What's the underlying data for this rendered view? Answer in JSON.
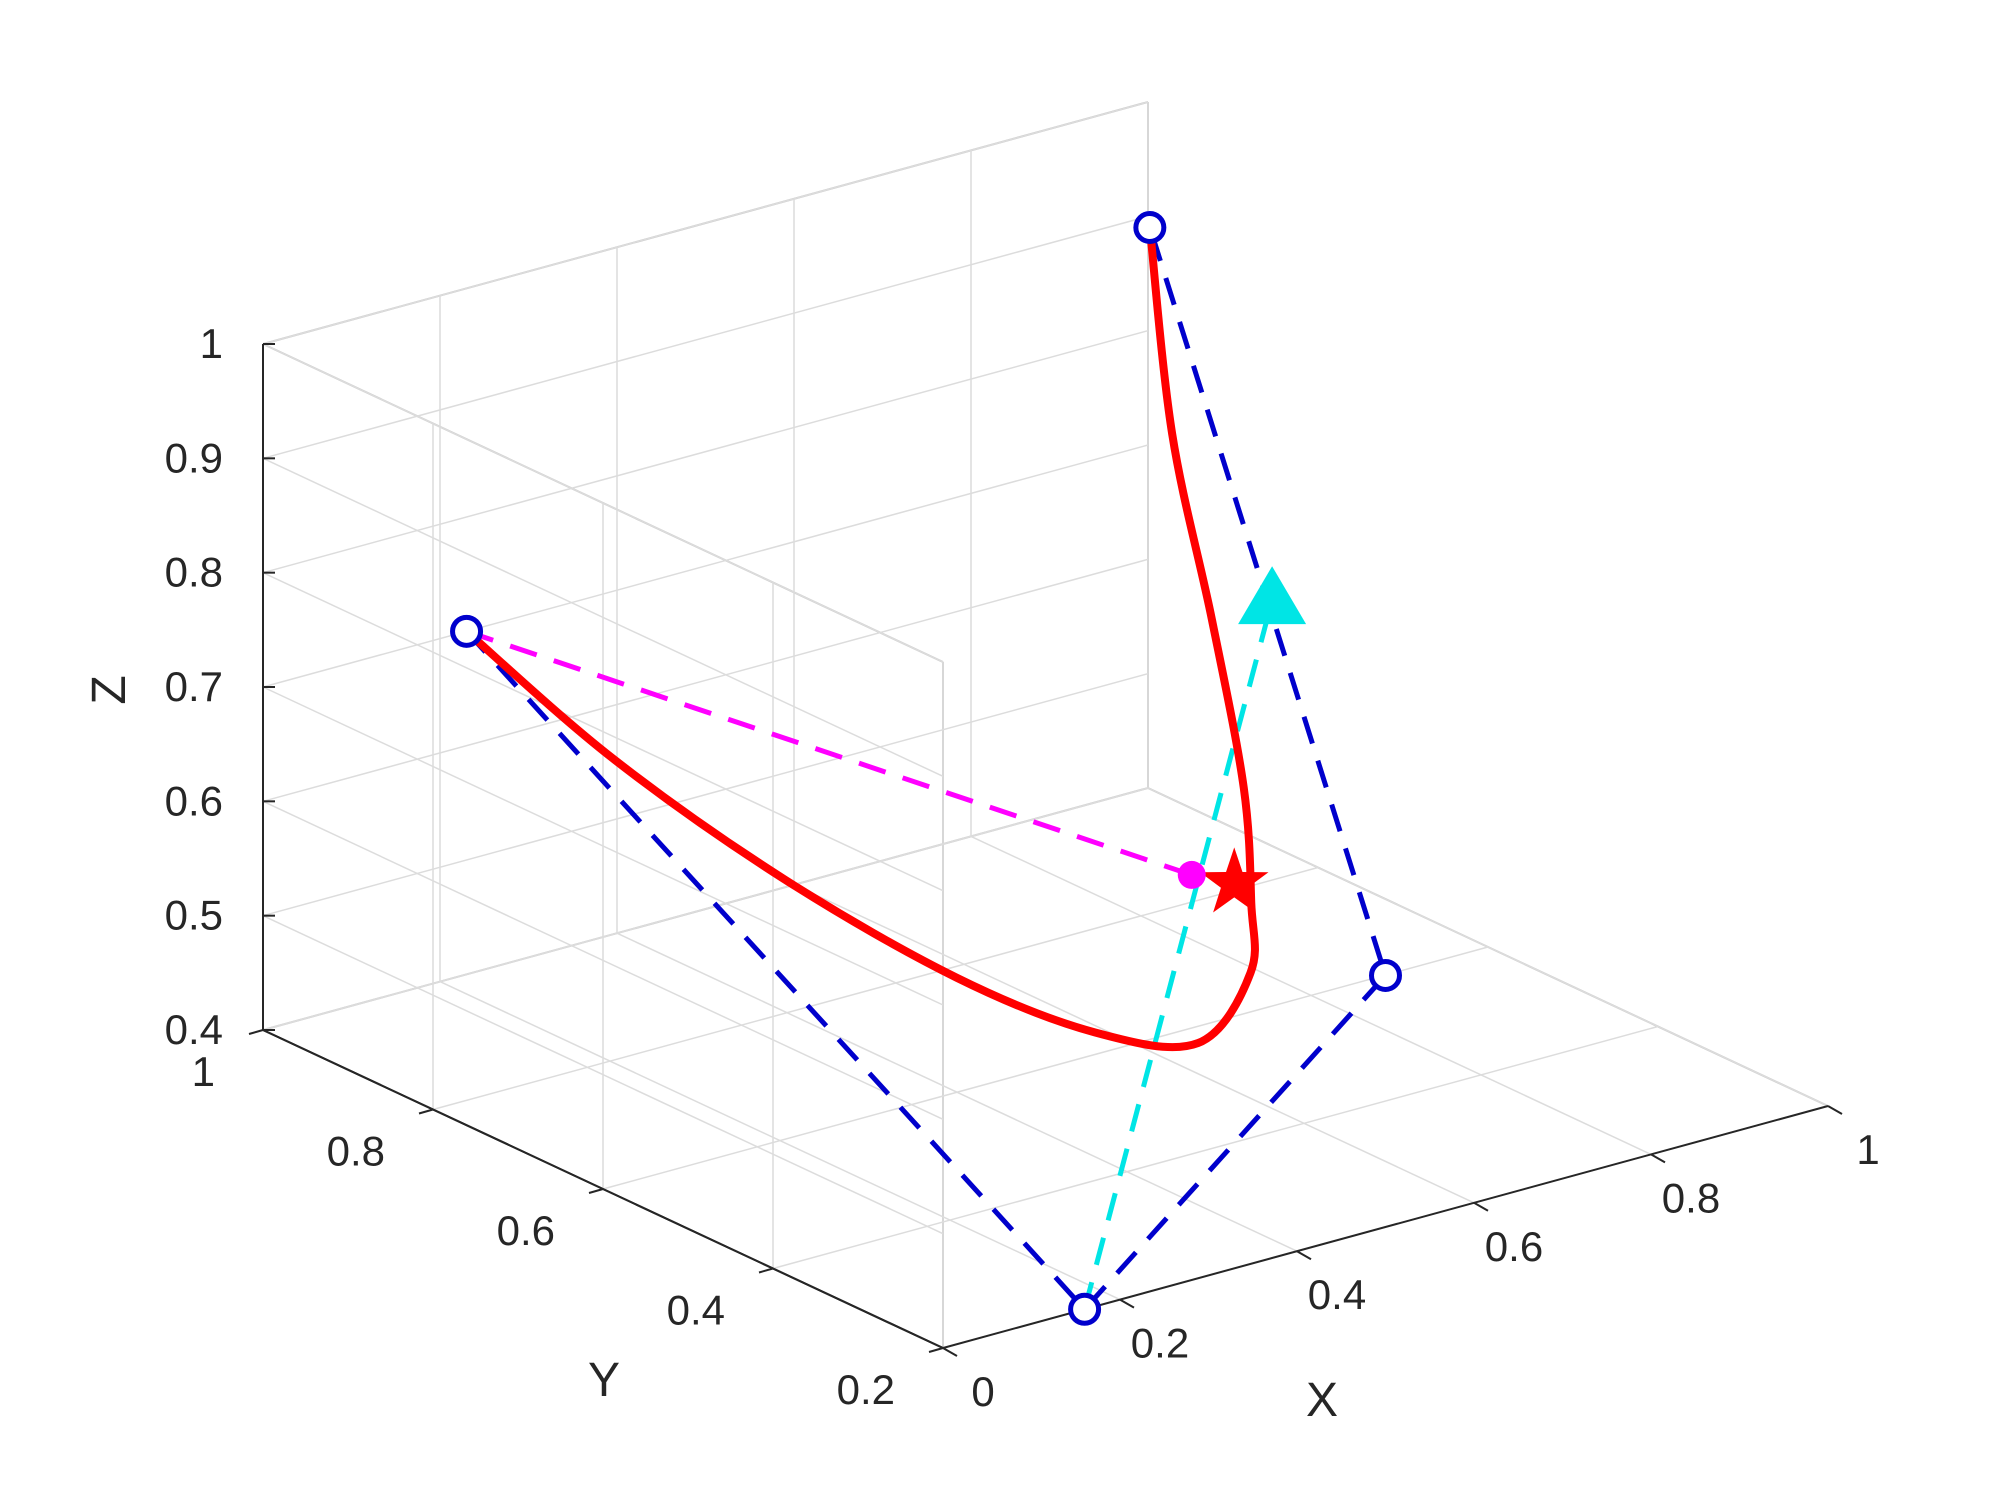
{
  "chart_data": {
    "type": "line3d",
    "title": "",
    "xlabel": "X",
    "ylabel": "Y",
    "zlabel": "Z",
    "xlim": [
      0,
      1
    ],
    "ylim": [
      0.2,
      1
    ],
    "zlim": [
      0.4,
      1
    ],
    "view": "3d-box",
    "grid": true,
    "x_ticks": [
      "0",
      "0.2",
      "0.4",
      "0.6",
      "0.8",
      "1"
    ],
    "y_ticks": [
      "0.2",
      "0.4",
      "0.6",
      "0.8",
      "1"
    ],
    "z_ticks": [
      "0.4",
      "0.5",
      "0.6",
      "0.7",
      "0.8",
      "0.9",
      "1"
    ],
    "x_tick_values": [
      0,
      0.2,
      0.4,
      0.6,
      0.8,
      1
    ],
    "y_tick_values": [
      0.2,
      0.4,
      0.6,
      0.8,
      1
    ],
    "z_tick_values": [
      0.4,
      0.5,
      0.6,
      0.7,
      0.8,
      0.9,
      1
    ],
    "vertices": [
      {
        "x": 0.23,
        "y": 1.0,
        "z": 0.7
      },
      {
        "x": 0.81,
        "y": 0.8,
        "z": 1.0
      },
      {
        "x": 0.16,
        "y": 0.2,
        "z": 0.4
      },
      {
        "x": 0.5,
        "y": 0.2,
        "z": 0.62
      }
    ],
    "series": [
      {
        "style": "dashed",
        "color": "#0000cc",
        "points": [
          {
            "x": 0.23,
            "y": 1.0,
            "z": 0.7
          },
          {
            "x": 0.16,
            "y": 0.2,
            "z": 0.4
          },
          {
            "x": 0.5,
            "y": 0.2,
            "z": 0.62
          },
          {
            "x": 0.81,
            "y": 0.8,
            "z": 1.0
          }
        ]
      },
      {
        "style": "dashed",
        "color": "#ff00ff",
        "points": [
          {
            "x": 0.23,
            "y": 1.0,
            "z": 0.7
          },
          {
            "x": 0.55,
            "y": 0.48,
            "z": 0.6
          }
        ]
      },
      {
        "style": "dashed",
        "color": "#00e5e5",
        "points": [
          {
            "x": 0.16,
            "y": 0.2,
            "z": 0.4
          },
          {
            "x": 0.66,
            "y": 0.5,
            "z": 0.81
          }
        ]
      },
      {
        "style": "solid",
        "color": "#ff0000",
        "points": [
          {
            "x": 0.23,
            "y": 1.0,
            "z": 0.7
          },
          {
            "x": 0.28,
            "y": 0.88,
            "z": 0.62
          },
          {
            "x": 0.34,
            "y": 0.74,
            "z": 0.55
          },
          {
            "x": 0.4,
            "y": 0.6,
            "z": 0.5
          },
          {
            "x": 0.45,
            "y": 0.49,
            "z": 0.48
          },
          {
            "x": 0.49,
            "y": 0.41,
            "z": 0.49
          },
          {
            "x": 0.53,
            "y": 0.39,
            "z": 0.55
          },
          {
            "x": 0.55,
            "y": 0.41,
            "z": 0.6
          },
          {
            "x": 0.58,
            "y": 0.45,
            "z": 0.68
          },
          {
            "x": 0.64,
            "y": 0.55,
            "z": 0.78
          },
          {
            "x": 0.72,
            "y": 0.68,
            "z": 0.88
          },
          {
            "x": 0.81,
            "y": 0.8,
            "z": 1.0
          }
        ]
      }
    ],
    "markers": [
      {
        "shape": "star",
        "color": "#ff0000",
        "x": 0.55,
        "y": 0.43,
        "z": 0.61
      },
      {
        "shape": "dot",
        "color": "#ff00ff",
        "x": 0.55,
        "y": 0.48,
        "z": 0.6
      },
      {
        "shape": "triangle",
        "color": "#00e5e5",
        "x": 0.66,
        "y": 0.5,
        "z": 0.81
      }
    ]
  }
}
